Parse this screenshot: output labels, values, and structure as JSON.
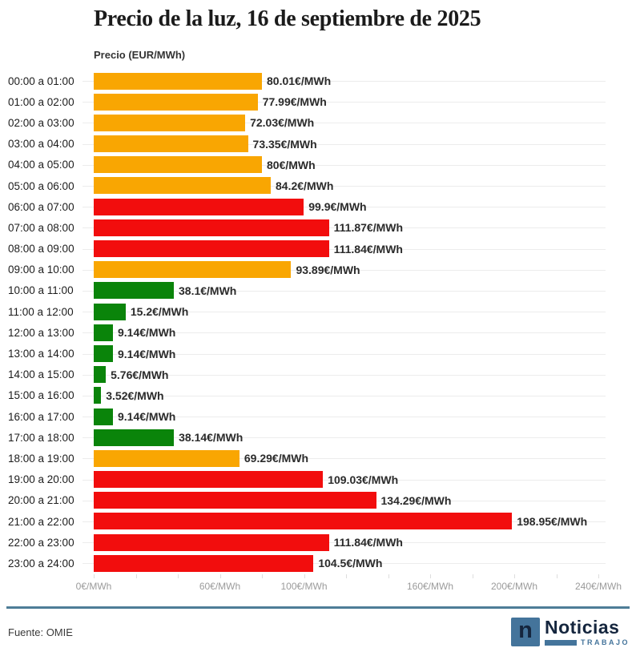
{
  "header": {
    "title": "Precio de la luz, 16 de septiembre de 2025",
    "axis_title": "Precio (EUR/MWh)"
  },
  "chart_data": {
    "type": "bar",
    "orientation": "horizontal",
    "title": "Precio de la luz, 16 de septiembre de 2025",
    "xlabel": "Precio (EUR/MWh)",
    "ylabel": "",
    "xlim": [
      0,
      240
    ],
    "grid": "horizontal-row-lines",
    "legend_position": "none",
    "x_tick_suffix": "€/MWh",
    "x_ticks_labeled": [
      0,
      60,
      100,
      160,
      200,
      240
    ],
    "x_minor_tick_step": 20,
    "color_map": {
      "orange": "#f9a602",
      "red": "#f20d0d",
      "green": "#0a840a"
    },
    "rows": [
      {
        "label": "00:00 a 01:00",
        "value": 80.01,
        "value_label": "80.01€/MWh",
        "color": "orange"
      },
      {
        "label": "01:00 a 02:00",
        "value": 77.99,
        "value_label": "77.99€/MWh",
        "color": "orange"
      },
      {
        "label": "02:00 a 03:00",
        "value": 72.03,
        "value_label": "72.03€/MWh",
        "color": "orange"
      },
      {
        "label": "03:00 a 04:00",
        "value": 73.35,
        "value_label": "73.35€/MWh",
        "color": "orange"
      },
      {
        "label": "04:00 a 05:00",
        "value": 80,
        "value_label": "80€/MWh",
        "color": "orange"
      },
      {
        "label": "05:00 a 06:00",
        "value": 84.2,
        "value_label": "84.2€/MWh",
        "color": "orange"
      },
      {
        "label": "06:00 a 07:00",
        "value": 99.9,
        "value_label": "99.9€/MWh",
        "color": "red"
      },
      {
        "label": "07:00 a 08:00",
        "value": 111.87,
        "value_label": "111.87€/MWh",
        "color": "red"
      },
      {
        "label": "08:00 a 09:00",
        "value": 111.84,
        "value_label": "111.84€/MWh",
        "color": "red"
      },
      {
        "label": "09:00 a 10:00",
        "value": 93.89,
        "value_label": "93.89€/MWh",
        "color": "orange"
      },
      {
        "label": "10:00 a 11:00",
        "value": 38.1,
        "value_label": "38.1€/MWh",
        "color": "green"
      },
      {
        "label": "11:00 a 12:00",
        "value": 15.2,
        "value_label": "15.2€/MWh",
        "color": "green"
      },
      {
        "label": "12:00 a 13:00",
        "value": 9.14,
        "value_label": "9.14€/MWh",
        "color": "green"
      },
      {
        "label": "13:00 a 14:00",
        "value": 9.14,
        "value_label": "9.14€/MWh",
        "color": "green"
      },
      {
        "label": "14:00 a 15:00",
        "value": 5.76,
        "value_label": "5.76€/MWh",
        "color": "green"
      },
      {
        "label": "15:00 a 16:00",
        "value": 3.52,
        "value_label": "3.52€/MWh",
        "color": "green"
      },
      {
        "label": "16:00 a 17:00",
        "value": 9.14,
        "value_label": "9.14€/MWh",
        "color": "green"
      },
      {
        "label": "17:00 a 18:00",
        "value": 38.14,
        "value_label": "38.14€/MWh",
        "color": "green"
      },
      {
        "label": "18:00 a 19:00",
        "value": 69.29,
        "value_label": "69.29€/MWh",
        "color": "orange"
      },
      {
        "label": "19:00 a 20:00",
        "value": 109.03,
        "value_label": "109.03€/MWh",
        "color": "red"
      },
      {
        "label": "20:00 a 21:00",
        "value": 134.29,
        "value_label": "134.29€/MWh",
        "color": "red"
      },
      {
        "label": "21:00 a 22:00",
        "value": 198.95,
        "value_label": "198.95€/MWh",
        "color": "red"
      },
      {
        "label": "22:00 a 23:00",
        "value": 111.84,
        "value_label": "111.84€/MWh",
        "color": "red"
      },
      {
        "label": "23:00 a 24:00",
        "value": 104.5,
        "value_label": "104.5€/MWh",
        "color": "red"
      }
    ]
  },
  "footer": {
    "source": "Fuente: OMIE",
    "logo": {
      "icon_letter": "n",
      "name": "Noticias",
      "sub": "TRABAJO"
    }
  },
  "colors": {
    "divider": "#4e7d97",
    "logo_blue": "#44749b",
    "logo_navy": "#15263e",
    "grid_line": "#ececec",
    "axis_text": "#9b9b9b"
  }
}
